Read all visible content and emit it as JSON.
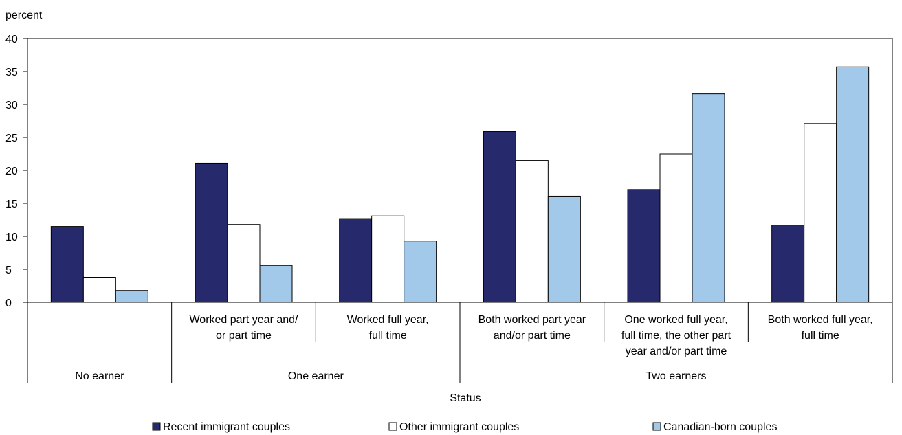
{
  "chart_data": {
    "type": "bar",
    "title": "",
    "ylabel": "percent",
    "xlabel": "Status",
    "ylim": [
      0,
      40
    ],
    "yticks": [
      0,
      5,
      10,
      15,
      20,
      25,
      30,
      35,
      40
    ],
    "grid": false,
    "legend_position": "bottom",
    "categories": [
      [
        "No earner"
      ],
      [
        "Worked part year and/",
        "or part time"
      ],
      [
        "Worked full year,",
        "full time"
      ],
      [
        "Both worked part year",
        "and/or part time"
      ],
      [
        "One worked full year,",
        "full time, the other part",
        "year and/or part time"
      ],
      [
        "Both worked full year,",
        "full time"
      ]
    ],
    "groups": [
      {
        "label": "No earner",
        "span": [
          0,
          0
        ]
      },
      {
        "label": "One earner",
        "span": [
          1,
          2
        ]
      },
      {
        "label": "Two earners",
        "span": [
          3,
          5
        ]
      }
    ],
    "series": [
      {
        "name": "Recent immigrant couples",
        "color": "#27296d",
        "values": [
          11.5,
          21.1,
          12.7,
          25.9,
          17.1,
          11.7
        ]
      },
      {
        "name": "Other immigrant couples",
        "color": "#ffffff",
        "values": [
          3.8,
          11.8,
          13.1,
          21.5,
          22.5,
          27.1
        ]
      },
      {
        "name": "Canadian-born couples",
        "color": "#a3c9ea",
        "values": [
          1.8,
          5.6,
          9.3,
          16.1,
          31.6,
          35.7
        ]
      }
    ]
  }
}
